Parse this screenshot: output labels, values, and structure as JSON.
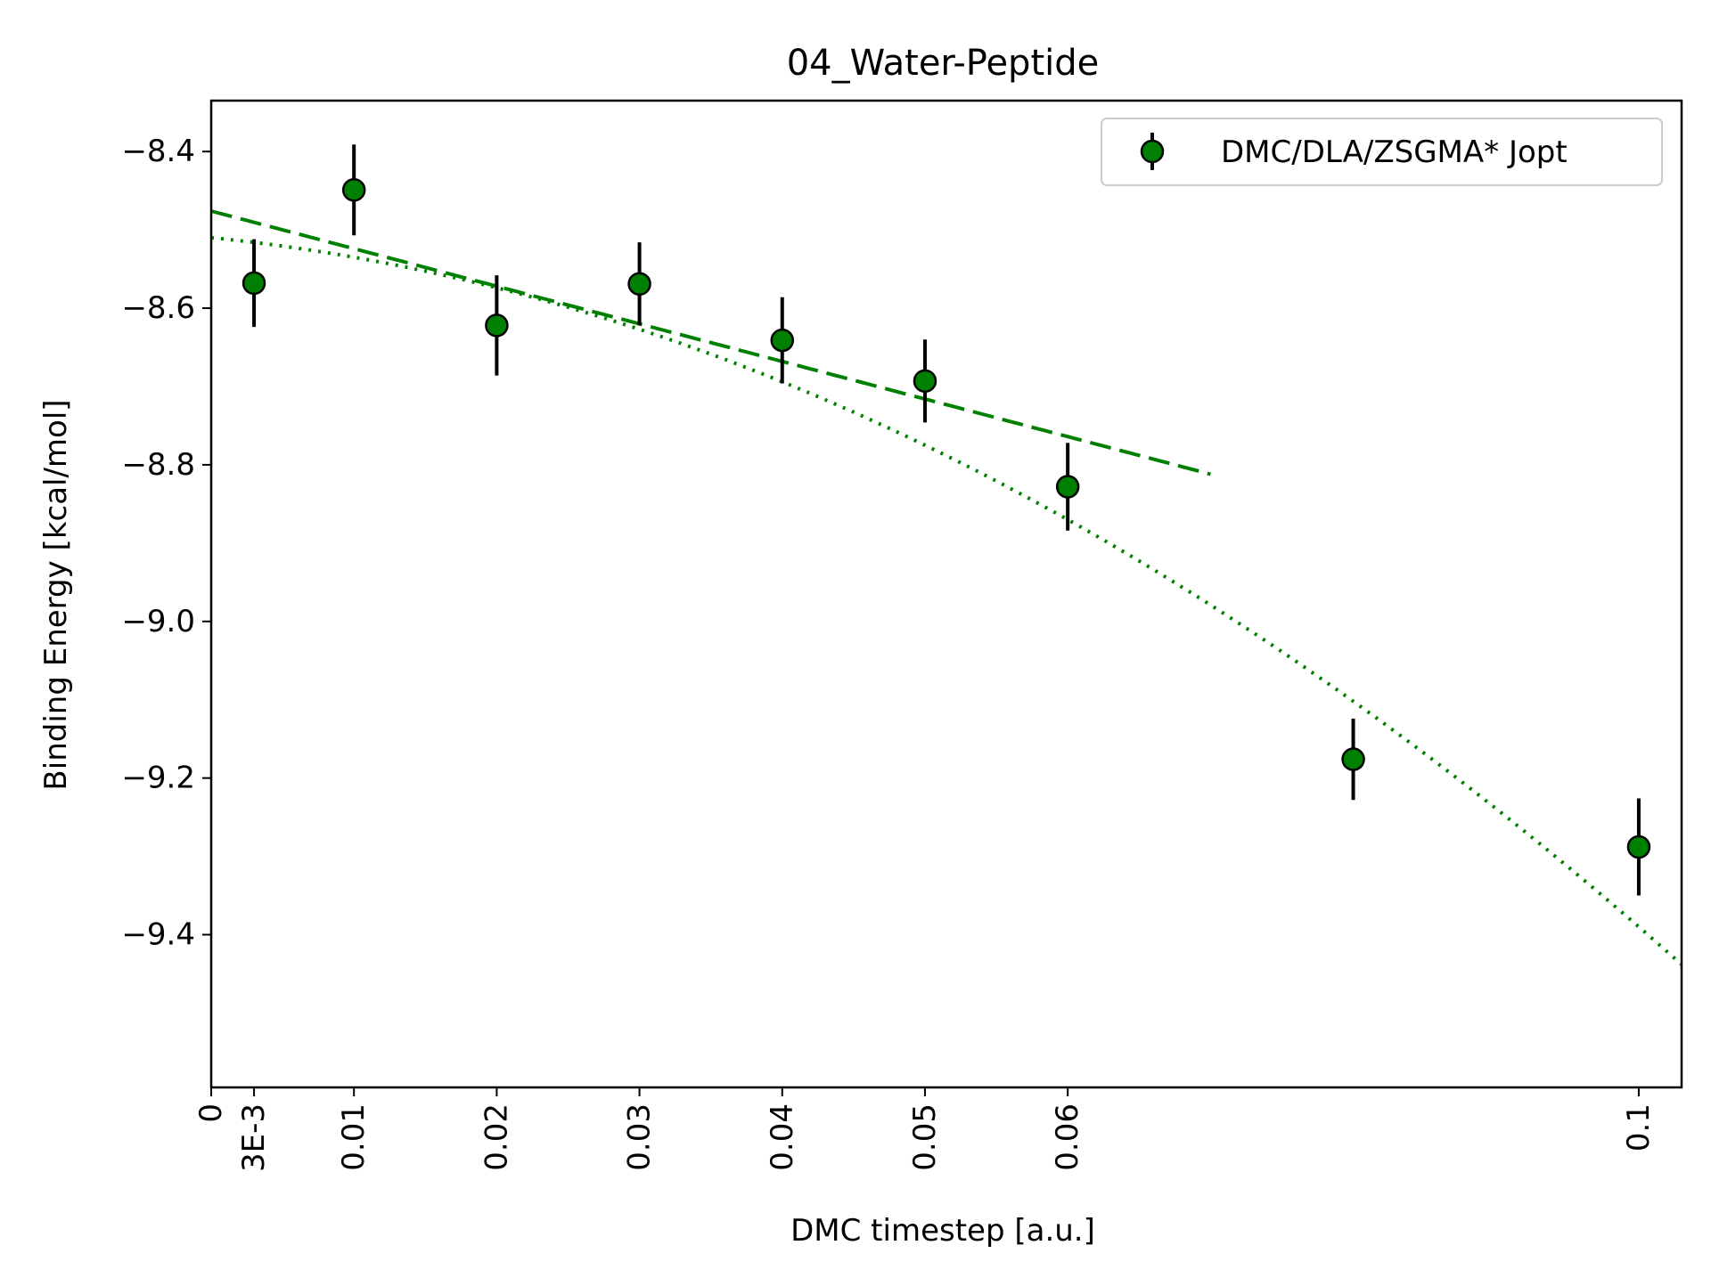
{
  "chart_data": {
    "type": "scatter",
    "title": "04_Water-Peptide",
    "xlabel": "DMC timestep [a.u.]",
    "ylabel": "Binding Energy [kcal/mol]",
    "xlim": [
      0,
      0.103
    ],
    "ylim": [
      -9.595,
      -8.335
    ],
    "grid": false,
    "legend_position": "top-right",
    "x_ticks": [
      {
        "value": 0,
        "label": "0"
      },
      {
        "value": 0.003,
        "label": "3E-3"
      },
      {
        "value": 0.01,
        "label": "0.01"
      },
      {
        "value": 0.02,
        "label": "0.02"
      },
      {
        "value": 0.03,
        "label": "0.03"
      },
      {
        "value": 0.04,
        "label": "0.04"
      },
      {
        "value": 0.05,
        "label": "0.05"
      },
      {
        "value": 0.06,
        "label": "0.06"
      },
      {
        "value": 0.1,
        "label": "0.1"
      }
    ],
    "y_ticks": [
      {
        "value": -8.4,
        "label": "−8.4"
      },
      {
        "value": -8.6,
        "label": "−8.6"
      },
      {
        "value": -8.8,
        "label": "−8.8"
      },
      {
        "value": -9.0,
        "label": "−9.0"
      },
      {
        "value": -9.2,
        "label": "−9.2"
      },
      {
        "value": -9.4,
        "label": "−9.4"
      }
    ],
    "series": [
      {
        "name": "DMC/DLA/ZSGMA* Jopt",
        "marker_color": "#008000",
        "error_color": "#000000",
        "points": [
          {
            "x": 0.003,
            "y": -8.568,
            "err": 0.056
          },
          {
            "x": 0.01,
            "y": -8.449,
            "err": 0.058
          },
          {
            "x": 0.02,
            "y": -8.622,
            "err": 0.064
          },
          {
            "x": 0.03,
            "y": -8.569,
            "err": 0.053
          },
          {
            "x": 0.04,
            "y": -8.641,
            "err": 0.055
          },
          {
            "x": 0.05,
            "y": -8.693,
            "err": 0.053
          },
          {
            "x": 0.06,
            "y": -8.828,
            "err": 0.056
          },
          {
            "x": 0.08,
            "y": -9.176,
            "err": 0.052
          },
          {
            "x": 0.1,
            "y": -9.288,
            "err": 0.062
          }
        ]
      }
    ],
    "fits": [
      {
        "kind": "linear",
        "style": "dashed",
        "color": "#008000",
        "x_range": [
          0,
          0.07
        ],
        "coeffs": [
          -8.476,
          -4.8
        ]
      },
      {
        "kind": "quadratic",
        "style": "dotted",
        "color": "#008000",
        "x_range": [
          0,
          0.103
        ],
        "coeffs": [
          -8.51,
          -1.8,
          -70.0
        ]
      }
    ]
  }
}
